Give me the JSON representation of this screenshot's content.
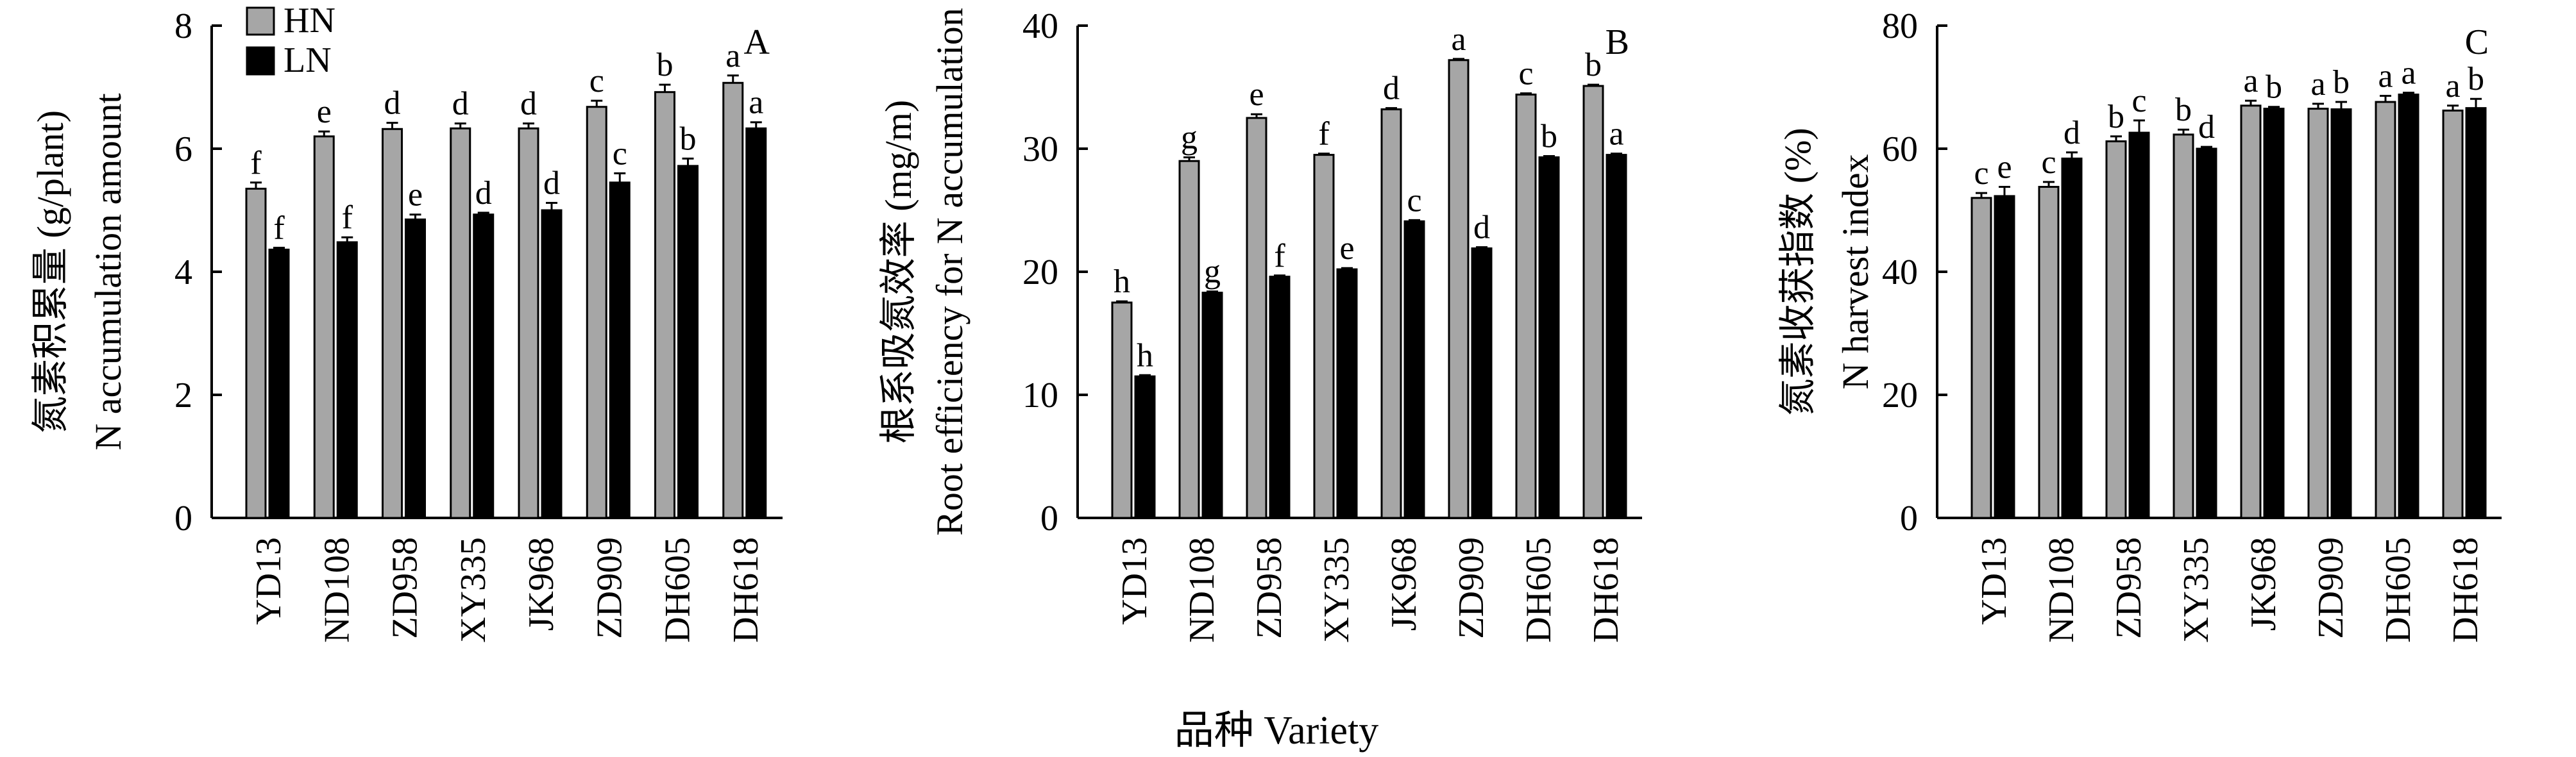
{
  "x_axis_label": "品种 Variety",
  "legend": [
    {
      "label": "HN",
      "color": "#a6a6a6"
    },
    {
      "label": "LN",
      "color": "#000000"
    }
  ],
  "chart_data": [
    {
      "panel": "A",
      "type": "bar",
      "ylabel_cn": "氮素积累量 (g/plant)",
      "ylabel_en": "N accumulation amount",
      "ylim": [
        0,
        8
      ],
      "yticks": [
        "0",
        "2",
        "4",
        "6",
        "8"
      ],
      "categories": [
        "YD13",
        "ND108",
        "ZD958",
        "XY335",
        "JK968",
        "ZD909",
        "DH605",
        "DH618"
      ],
      "series": [
        {
          "name": "HN",
          "values": [
            5.35,
            6.2,
            6.32,
            6.33,
            6.33,
            6.68,
            6.92,
            7.07
          ],
          "errors": [
            0.1,
            0.08,
            0.1,
            0.08,
            0.08,
            0.1,
            0.12,
            0.12
          ],
          "letters": [
            "f",
            "e",
            "d",
            "d",
            "d",
            "c",
            "b",
            "a"
          ]
        },
        {
          "name": "LN",
          "values": [
            4.36,
            4.48,
            4.85,
            4.93,
            5.0,
            5.45,
            5.72,
            6.33
          ],
          "errors": [
            0.03,
            0.08,
            0.08,
            0.03,
            0.12,
            0.15,
            0.12,
            0.1
          ],
          "letters": [
            "f",
            "f",
            "e",
            "d",
            "d",
            "c",
            "b",
            "a"
          ]
        }
      ]
    },
    {
      "panel": "B",
      "type": "bar",
      "ylabel_cn": "根系吸氮效率 (mg/m)",
      "ylabel_en": "Root efficiency for N accumulation",
      "ylim": [
        0,
        40
      ],
      "yticks": [
        "0",
        "10",
        "20",
        "30",
        "40"
      ],
      "categories": [
        "YD13",
        "ND108",
        "ZD958",
        "XY335",
        "JK968",
        "ZD909",
        "DH605",
        "DH618"
      ],
      "series": [
        {
          "name": "HN",
          "values": [
            17.5,
            29.0,
            32.5,
            29.5,
            33.2,
            37.2,
            34.4,
            35.1
          ],
          "errors": [
            0.1,
            0.3,
            0.3,
            0.1,
            0.1,
            0.1,
            0.1,
            0.1
          ],
          "letters": [
            "h",
            "g",
            "e",
            "f",
            "d",
            "a",
            "c",
            "b"
          ]
        },
        {
          "name": "LN",
          "values": [
            11.5,
            18.3,
            19.6,
            20.2,
            24.1,
            21.9,
            29.3,
            29.5
          ],
          "errors": [
            0.1,
            0.1,
            0.1,
            0.1,
            0.1,
            0.1,
            0.1,
            0.1
          ],
          "letters": [
            "h",
            "g",
            "f",
            "e",
            "c",
            "d",
            "b",
            "a"
          ]
        }
      ]
    },
    {
      "panel": "C",
      "type": "bar",
      "ylabel_cn": "氮素收获指数 (%)",
      "ylabel_en": "N harvest index",
      "ylim": [
        0,
        80
      ],
      "yticks": [
        "0",
        "20",
        "40",
        "60",
        "80"
      ],
      "categories": [
        "YD13",
        "ND108",
        "ZD958",
        "XY335",
        "JK968",
        "ZD909",
        "DH605",
        "DH618"
      ],
      "series": [
        {
          "name": "HN",
          "values": [
            52.0,
            53.8,
            61.2,
            62.3,
            67.0,
            66.5,
            67.6,
            66.2
          ],
          "errors": [
            0.8,
            0.8,
            0.8,
            0.8,
            0.8,
            0.8,
            1.0,
            0.8
          ],
          "letters": [
            "c",
            "c",
            "b",
            "b",
            "a",
            "a",
            "a",
            "a"
          ]
        },
        {
          "name": "LN",
          "values": [
            52.3,
            58.4,
            62.6,
            60.0,
            66.5,
            66.4,
            68.8,
            66.6
          ],
          "errors": [
            1.5,
            1.0,
            2.0,
            0.3,
            0.3,
            1.2,
            0.3,
            1.5
          ],
          "letters": [
            "e",
            "d",
            "c",
            "d",
            "b",
            "b",
            "a",
            "b"
          ]
        }
      ]
    }
  ]
}
